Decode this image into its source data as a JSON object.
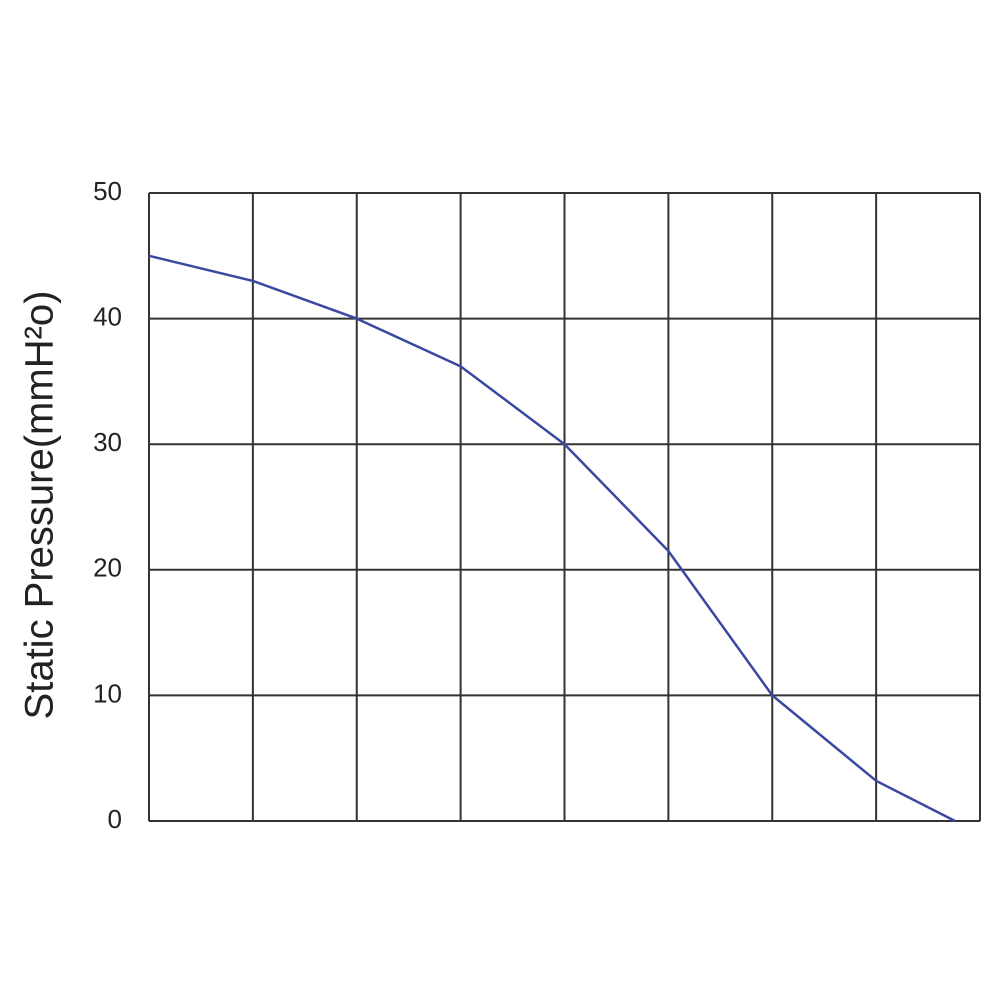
{
  "chart_data": {
    "type": "line",
    "y_label": "Static Pressure(mmH²o)",
    "x": [
      0,
      1,
      2,
      3,
      4,
      5,
      6,
      7,
      7.76
    ],
    "series": [
      {
        "color": "#3b48a0",
        "values": [
          45,
          43,
          40,
          36.2,
          30,
          21.5,
          10,
          3.2,
          0
        ]
      }
    ],
    "xlim": [
      0,
      8
    ],
    "xticks": [
      0,
      1,
      2,
      3,
      4,
      5,
      6,
      7,
      8
    ],
    "xtick_labels": false,
    "ylim": [
      0,
      50
    ],
    "yticks": [
      0,
      10,
      20,
      30,
      40,
      50
    ],
    "grid": true
  }
}
